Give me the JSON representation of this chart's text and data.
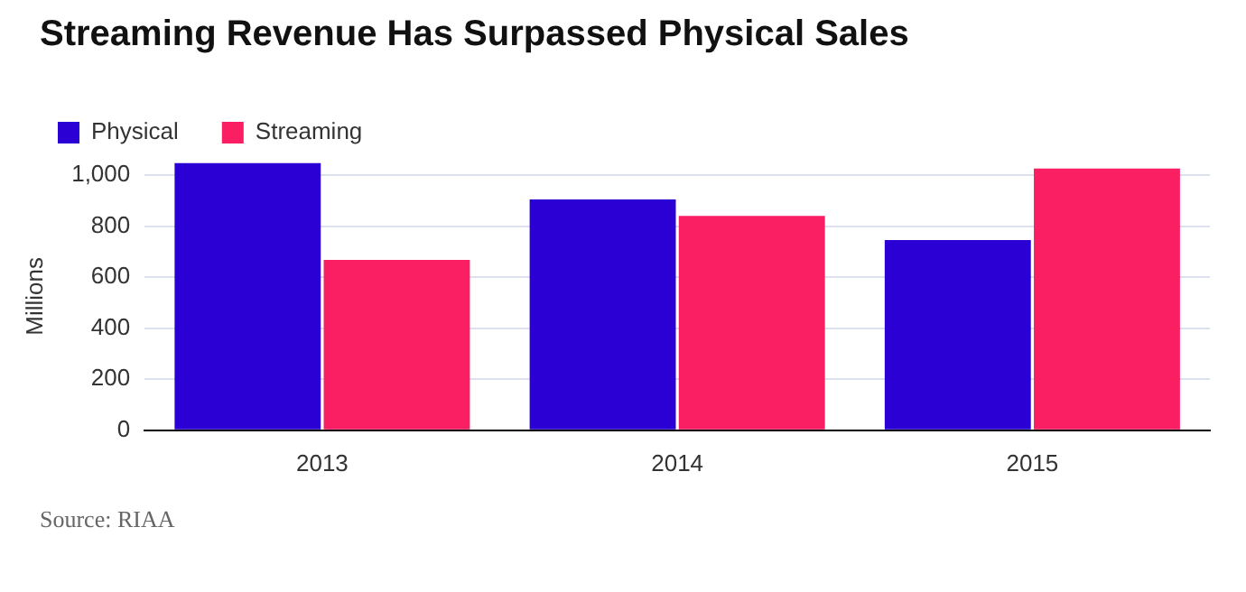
{
  "chart_data": {
    "type": "bar",
    "title": "Streaming Revenue Has Surpassed Physical Sales",
    "categories": [
      "2013",
      "2014",
      "2015"
    ],
    "series": [
      {
        "name": "Physical",
        "color": "#2a00d4",
        "values": [
          1047,
          905,
          746
        ]
      },
      {
        "name": "Streaming",
        "color": "#fa1e63",
        "values": [
          668,
          840,
          1026
        ]
      }
    ],
    "ylabel": "Millions",
    "ylim": [
      0,
      1050
    ],
    "yticks": [
      0,
      200,
      400,
      600,
      800,
      {
        "value": 1000,
        "label": "1,000"
      }
    ],
    "grid": "y",
    "legend": "top left",
    "annotations": [
      "Source: RIAA"
    ]
  }
}
